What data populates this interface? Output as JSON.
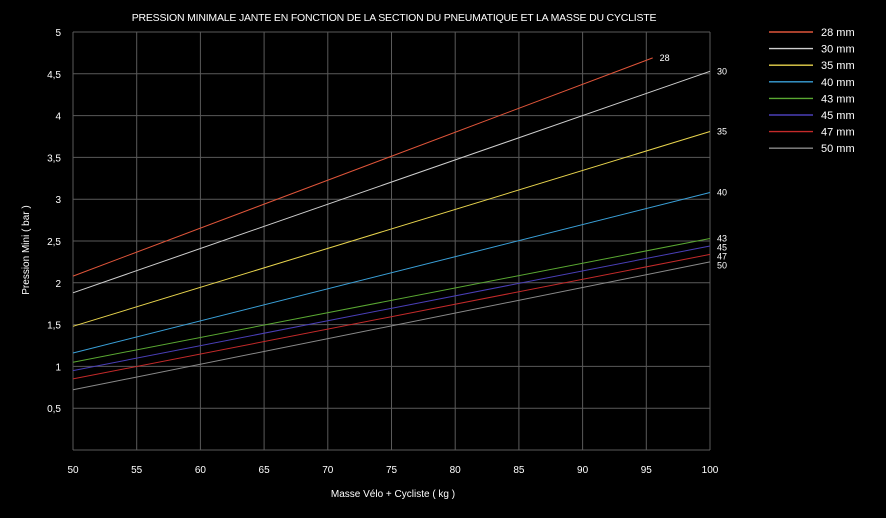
{
  "chart_data": {
    "type": "line",
    "title": "PRESSION MINIMALE JANTE EN FONCTION DE LA SECTION DU PNEUMATIQUE ET LA MASSE DU CYCLISTE",
    "xlabel": "Masse Vélo + Cycliste ( kg )",
    "ylabel": "Pression Mini ( bar )",
    "xlim": [
      50,
      100
    ],
    "ylim": [
      0,
      5
    ],
    "x_ticks": [
      "50",
      "55",
      "60",
      "65",
      "70",
      "75",
      "80",
      "85",
      "90",
      "95",
      "100"
    ],
    "y_ticks": [
      "0,5",
      "1",
      "1,5",
      "2",
      "2,5",
      "3",
      "3,5",
      "4",
      "4,5",
      "5"
    ],
    "grid": true,
    "legend_position": "right",
    "series": [
      {
        "name": "28 mm",
        "end_label": "28",
        "color": "#e0553a",
        "x": [
          50,
          95.5
        ],
        "y": [
          2.08,
          4.69
        ]
      },
      {
        "name": "30 mm",
        "end_label": "30",
        "color": "#cfcfcf",
        "x": [
          50,
          100
        ],
        "y": [
          1.88,
          4.53
        ]
      },
      {
        "name": "35 mm",
        "end_label": "35",
        "color": "#e8d44d",
        "x": [
          50,
          100
        ],
        "y": [
          1.48,
          3.81
        ]
      },
      {
        "name": "40 mm",
        "end_label": "40",
        "color": "#3aa0d8",
        "x": [
          50,
          100
        ],
        "y": [
          1.16,
          3.08
        ]
      },
      {
        "name": "43 mm",
        "end_label": "43",
        "color": "#5aa832",
        "x": [
          50,
          100
        ],
        "y": [
          1.05,
          2.53
        ]
      },
      {
        "name": "45 mm",
        "end_label": "45",
        "color": "#4a3fb8",
        "x": [
          50,
          100
        ],
        "y": [
          0.95,
          2.44
        ]
      },
      {
        "name": "47 mm",
        "end_label": "47",
        "color": "#c42a2a",
        "x": [
          50,
          100
        ],
        "y": [
          0.85,
          2.34
        ]
      },
      {
        "name": "50 mm",
        "end_label": "50",
        "color": "#8a8a8a",
        "x": [
          50,
          100
        ],
        "y": [
          0.72,
          2.25
        ]
      }
    ]
  }
}
